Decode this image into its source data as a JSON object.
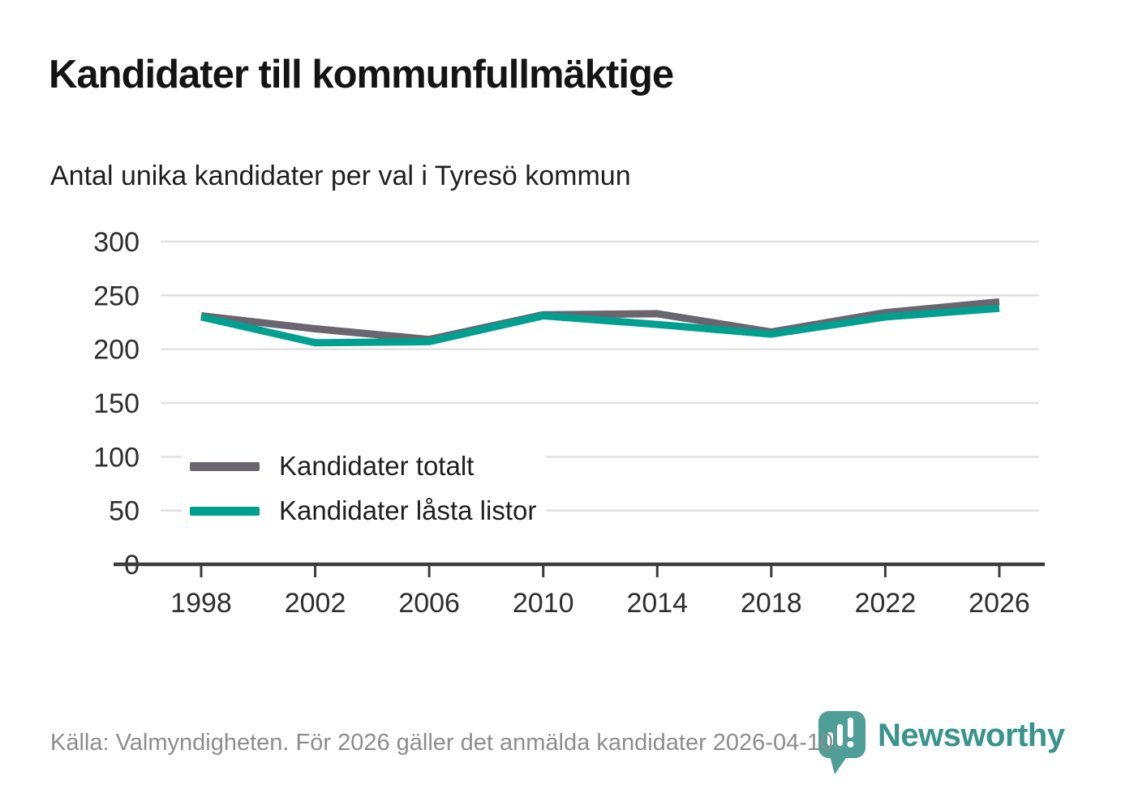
{
  "header": {
    "title": "Kandidater till kommunfullmäktige",
    "subtitle": "Antal unika kandidater per val i Tyresö kommun"
  },
  "chart_data": {
    "type": "line",
    "x": [
      1998,
      2002,
      2006,
      2010,
      2014,
      2018,
      2022,
      2026
    ],
    "series": [
      {
        "name": "Kandidater totalt",
        "color": "#6b6570",
        "values": [
          231,
          219,
          209,
          232,
          233,
          216,
          234,
          244
        ]
      },
      {
        "name": "Kandidater låsta listor",
        "color": "#00a091",
        "values": [
          230,
          206,
          207,
          231,
          223,
          214,
          230,
          238
        ]
      }
    ],
    "ylim": [
      0,
      300
    ],
    "yticks": [
      0,
      50,
      100,
      150,
      200,
      250,
      300
    ],
    "grid": "horizontal",
    "legend_position": "inside-left",
    "axis_color": "#3c3c3c",
    "gridline_color": "#e1e1e1",
    "tick_label_color": "#2e2e2e"
  },
  "footer": {
    "source": "Källa: Valmyndigheten. För 2026 gäller det anmälda kandidater 2026-04-10."
  },
  "branding": {
    "name": "Newsworthy",
    "logo_icon": "bar-chart-pin-icon",
    "color": "#3a948e",
    "mark_color": "#4f9e98"
  }
}
